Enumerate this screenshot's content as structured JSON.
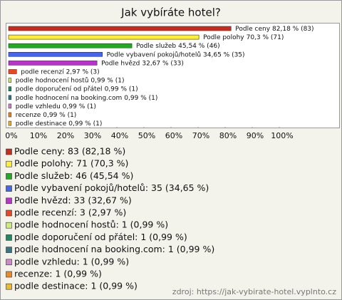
{
  "chart_data": {
    "type": "bar",
    "orientation": "horizontal",
    "title": "Jak vybíráte hotel?",
    "categories": [
      "Podle ceny",
      "Podle polohy",
      "Podle služeb",
      "Podle vybavení pokojů/hotelů",
      "Podle hvězd",
      "podle recenzí",
      "podle hodnocení hostů",
      "podle doporučení od přátel",
      "podle hodnocení na booking.com",
      "podle vzhledu",
      "recenze",
      "podle destinace"
    ],
    "values": [
      82.18,
      70.3,
      45.54,
      34.65,
      32.67,
      2.97,
      0.99,
      0.99,
      0.99,
      0.99,
      0.99,
      0.99
    ],
    "value_labels": [
      "82,18 % (83)",
      "70,3 % (71)",
      "45,54 % (46)",
      "34,65 % (35)",
      "32,67 % (33)",
      "2,97 % (3)",
      "0,99 % (1)",
      "0,99 % (1)",
      "0,99 % (1)",
      "0,99 % (1)",
      "0,99 % (1)",
      "0,99 % (1)"
    ],
    "colors": [
      "#cc2a1a",
      "#ffee33",
      "#22aa22",
      "#4466ee",
      "#bb33cc",
      "#ee4422",
      "#ccee77",
      "#228866",
      "#337788",
      "#cc88cc",
      "#ee8822",
      "#eebb22"
    ],
    "legend_labels": [
      "Podle ceny: 83 (82,18 %)",
      "Podle polohy: 71 (70,3 %)",
      "Podle služeb: 46 (45,54 %)",
      "Podle vybavení pokojů/hotelů: 35 (34,65 %)",
      "Podle hvězd: 33 (32,67 %)",
      "podle recenzí: 3 (2,97 %)",
      "podle hodnocení hostů: 1 (0,99 %)",
      "podle doporučení od přátel: 1 (0,99 %)",
      "podle hodnocení na booking.com: 1 (0,99 %)",
      "podle vzhledu: 1 (0,99 %)",
      "recenze: 1 (0,99 %)",
      "podle destinace: 1 (0,99 %)"
    ],
    "xlim": [
      0,
      100
    ],
    "xticks": [
      {
        "value": 0,
        "label": "0%"
      },
      {
        "value": 10,
        "label": "10%"
      },
      {
        "value": 20,
        "label": "20%"
      },
      {
        "value": 30,
        "label": "30%"
      },
      {
        "value": 40,
        "label": "40%"
      },
      {
        "value": 50,
        "label": "50%"
      },
      {
        "value": 60,
        "label": "60%"
      },
      {
        "value": 70,
        "label": "70%"
      },
      {
        "value": 80,
        "label": "80%"
      },
      {
        "value": 90,
        "label": "90%"
      },
      {
        "value": 100,
        "label": "100%"
      }
    ],
    "source": "zdroj: https://jak-vybirate-hotel.vyplnto.cz"
  }
}
